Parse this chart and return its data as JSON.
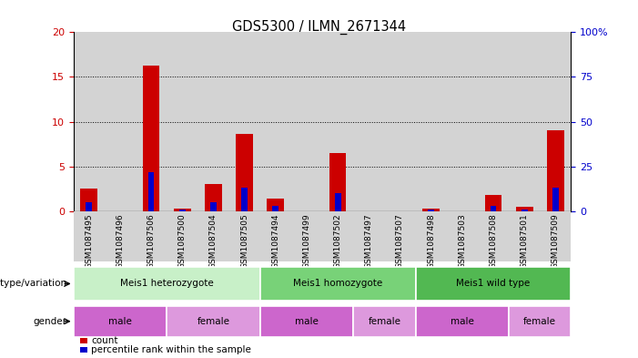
{
  "title": "GDS5300 / ILMN_2671344",
  "samples": [
    "GSM1087495",
    "GSM1087496",
    "GSM1087506",
    "GSM1087500",
    "GSM1087504",
    "GSM1087505",
    "GSM1087494",
    "GSM1087499",
    "GSM1087502",
    "GSM1087497",
    "GSM1087507",
    "GSM1087498",
    "GSM1087503",
    "GSM1087508",
    "GSM1087501",
    "GSM1087509"
  ],
  "counts": [
    2.5,
    0.0,
    16.3,
    0.3,
    3.0,
    8.6,
    1.4,
    0.0,
    6.5,
    0.0,
    0.0,
    0.3,
    0.0,
    1.8,
    0.5,
    9.0
  ],
  "percentiles": [
    5,
    0,
    22,
    1,
    5,
    13,
    3,
    0,
    10,
    0,
    0,
    1,
    0,
    3,
    1,
    13
  ],
  "ylim_left": [
    0,
    20
  ],
  "ylim_right": [
    0,
    100
  ],
  "yticks_left": [
    0,
    5,
    10,
    15,
    20
  ],
  "yticks_right": [
    0,
    25,
    50,
    75,
    100
  ],
  "count_color": "#cc0000",
  "percentile_color": "#0000cc",
  "bar_bg_color": "#d3d3d3",
  "genotype_groups": [
    {
      "label": "Meis1 heterozygote",
      "start": 0,
      "end": 5,
      "color": "#c8f0c8"
    },
    {
      "label": "Meis1 homozygote",
      "start": 6,
      "end": 10,
      "color": "#78d278"
    },
    {
      "label": "Meis1 wild type",
      "start": 11,
      "end": 15,
      "color": "#52b852"
    }
  ],
  "gender_groups": [
    {
      "label": "male",
      "start": 0,
      "end": 2,
      "color": "#cc66cc"
    },
    {
      "label": "female",
      "start": 3,
      "end": 5,
      "color": "#dd99dd"
    },
    {
      "label": "male",
      "start": 6,
      "end": 8,
      "color": "#cc66cc"
    },
    {
      "label": "female",
      "start": 9,
      "end": 10,
      "color": "#dd99dd"
    },
    {
      "label": "male",
      "start": 11,
      "end": 13,
      "color": "#cc66cc"
    },
    {
      "label": "female",
      "start": 14,
      "end": 15,
      "color": "#dd99dd"
    }
  ],
  "legend_count_label": "count",
  "legend_pct_label": "percentile rank within the sample",
  "genotype_label": "genotype/variation",
  "gender_label": "gender",
  "bar_width": 0.55,
  "pct_bar_width": 0.2
}
